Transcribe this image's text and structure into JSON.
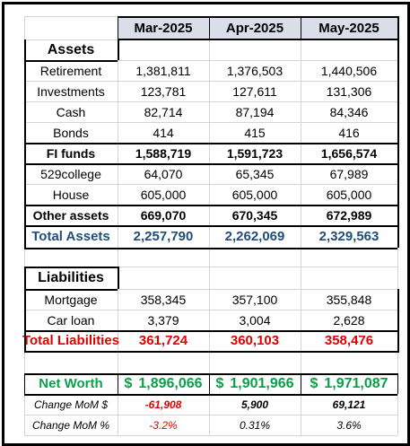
{
  "headers": [
    "Mar-2025",
    "Apr-2025",
    "May-2025"
  ],
  "assets": {
    "label": "Assets",
    "rows": [
      {
        "label": "Retirement",
        "values": [
          "1,381,811",
          "1,376,503",
          "1,440,506"
        ]
      },
      {
        "label": "Investments",
        "values": [
          "123,781",
          "127,611",
          "131,306"
        ]
      },
      {
        "label": "Cash",
        "values": [
          "82,714",
          "87,194",
          "84,346"
        ]
      },
      {
        "label": "Bonds",
        "values": [
          "414",
          "415",
          "416"
        ]
      }
    ],
    "fi_funds": {
      "label": "FI funds",
      "values": [
        "1,588,719",
        "1,591,723",
        "1,656,574"
      ]
    },
    "other_rows": [
      {
        "label": "529college",
        "values": [
          "64,070",
          "65,345",
          "67,989"
        ]
      },
      {
        "label": "House",
        "values": [
          "605,000",
          "605,000",
          "605,000"
        ]
      }
    ],
    "other_assets": {
      "label": "Other assets",
      "values": [
        "669,070",
        "670,345",
        "672,989"
      ]
    },
    "total": {
      "label": "Total Assets",
      "values": [
        "2,257,790",
        "2,262,069",
        "2,329,563"
      ]
    }
  },
  "liabilities": {
    "label": "Liabilities",
    "rows": [
      {
        "label": "Mortgage",
        "values": [
          "358,345",
          "357,100",
          "355,848"
        ]
      },
      {
        "label": "Car loan",
        "values": [
          "3,379",
          "3,004",
          "2,628"
        ]
      }
    ],
    "total": {
      "label": "Total Liabilities",
      "values": [
        "361,724",
        "360,103",
        "358,476"
      ]
    }
  },
  "net_worth": {
    "label": "Net Worth",
    "currency": "$",
    "values": [
      "1,896,066",
      "1,901,966",
      "1,971,087"
    ]
  },
  "change_dollar": {
    "label": "Change MoM $",
    "values": [
      "-61,908",
      "5,900",
      "69,121"
    ]
  },
  "change_pct": {
    "label": "Change MoM %",
    "values": [
      "-3.2%",
      "0.31%",
      "3.6%"
    ]
  },
  "colors": {
    "header_bg": "#d9dee9",
    "total_assets": "#1f4e79",
    "total_liabilities": "#e00000",
    "net_worth": "#0aa04a",
    "negative": "#e00000"
  }
}
